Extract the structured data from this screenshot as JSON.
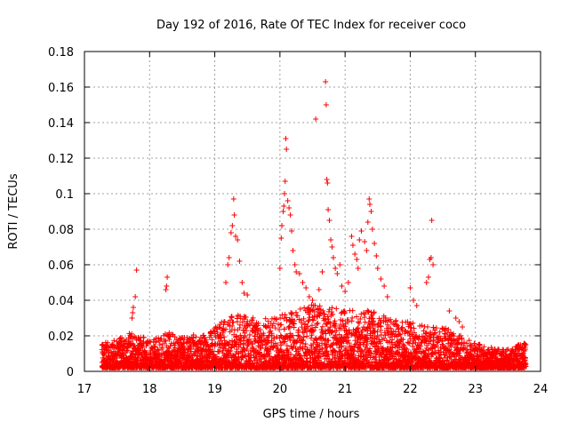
{
  "chart_data": {
    "type": "scatter",
    "title": "Day 192 of 2016, Rate Of TEC Index for receiver coco",
    "xlabel": "GPS time / hours",
    "ylabel": "ROTI / TECUs",
    "xlim": [
      17,
      24
    ],
    "ylim": [
      0,
      0.18
    ],
    "xticks": [
      "17",
      "18",
      "19",
      "20",
      "21",
      "22",
      "23",
      "24"
    ],
    "yticks": [
      "0",
      "0.02",
      "0.04",
      "0.06",
      "0.08",
      "0.1",
      "0.12",
      "0.14",
      "0.16",
      "0.18"
    ],
    "grid": true,
    "marker": "+",
    "series": [
      {
        "name": "ROTI",
        "color": "#ff0000",
        "outliers": [
          [
            17.8,
            0.057
          ],
          [
            17.78,
            0.042
          ],
          [
            17.75,
            0.036
          ],
          [
            17.74,
            0.033
          ],
          [
            17.73,
            0.03
          ],
          [
            18.27,
            0.053
          ],
          [
            18.26,
            0.048
          ],
          [
            18.25,
            0.046
          ],
          [
            19.17,
            0.05
          ],
          [
            19.2,
            0.06
          ],
          [
            19.22,
            0.064
          ],
          [
            19.25,
            0.078
          ],
          [
            19.27,
            0.082
          ],
          [
            19.29,
            0.097
          ],
          [
            19.3,
            0.088
          ],
          [
            19.32,
            0.076
          ],
          [
            19.35,
            0.074
          ],
          [
            19.38,
            0.062
          ],
          [
            19.42,
            0.05
          ],
          [
            19.45,
            0.044
          ],
          [
            19.5,
            0.043
          ],
          [
            20.0,
            0.058
          ],
          [
            20.02,
            0.075
          ],
          [
            20.03,
            0.082
          ],
          [
            20.05,
            0.09
          ],
          [
            20.06,
            0.093
          ],
          [
            20.07,
            0.1
          ],
          [
            20.08,
            0.107
          ],
          [
            20.09,
            0.131
          ],
          [
            20.1,
            0.125
          ],
          [
            20.12,
            0.096
          ],
          [
            20.14,
            0.092
          ],
          [
            20.16,
            0.088
          ],
          [
            20.18,
            0.079
          ],
          [
            20.2,
            0.068
          ],
          [
            20.23,
            0.06
          ],
          [
            20.25,
            0.056
          ],
          [
            20.3,
            0.055
          ],
          [
            20.35,
            0.05
          ],
          [
            20.4,
            0.047
          ],
          [
            20.45,
            0.042
          ],
          [
            20.5,
            0.04
          ],
          [
            20.55,
            0.142
          ],
          [
            20.6,
            0.046
          ],
          [
            20.65,
            0.056
          ],
          [
            20.7,
            0.163
          ],
          [
            20.71,
            0.15
          ],
          [
            20.72,
            0.108
          ],
          [
            20.73,
            0.106
          ],
          [
            20.74,
            0.091
          ],
          [
            20.76,
            0.085
          ],
          [
            20.78,
            0.074
          ],
          [
            20.8,
            0.07
          ],
          [
            20.82,
            0.064
          ],
          [
            20.85,
            0.058
          ],
          [
            20.88,
            0.055
          ],
          [
            20.92,
            0.06
          ],
          [
            20.95,
            0.048
          ],
          [
            21.0,
            0.045
          ],
          [
            21.05,
            0.05
          ],
          [
            21.1,
            0.076
          ],
          [
            21.12,
            0.071
          ],
          [
            21.15,
            0.066
          ],
          [
            21.18,
            0.063
          ],
          [
            21.2,
            0.058
          ],
          [
            21.22,
            0.074
          ],
          [
            21.25,
            0.079
          ],
          [
            21.3,
            0.073
          ],
          [
            21.33,
            0.068
          ],
          [
            21.35,
            0.084
          ],
          [
            21.37,
            0.097
          ],
          [
            21.38,
            0.094
          ],
          [
            21.4,
            0.09
          ],
          [
            21.42,
            0.08
          ],
          [
            21.45,
            0.072
          ],
          [
            21.48,
            0.065
          ],
          [
            21.5,
            0.058
          ],
          [
            21.55,
            0.052
          ],
          [
            21.6,
            0.048
          ],
          [
            21.65,
            0.042
          ],
          [
            22.0,
            0.047
          ],
          [
            22.05,
            0.04
          ],
          [
            22.1,
            0.037
          ],
          [
            22.25,
            0.05
          ],
          [
            22.28,
            0.053
          ],
          [
            22.3,
            0.063
          ],
          [
            22.32,
            0.064
          ],
          [
            22.33,
            0.085
          ],
          [
            22.35,
            0.06
          ],
          [
            22.6,
            0.034
          ],
          [
            22.7,
            0.03
          ],
          [
            22.75,
            0.028
          ],
          [
            22.8,
            0.025
          ]
        ],
        "envelope": [
          [
            17.3,
            0.016
          ],
          [
            17.5,
            0.018
          ],
          [
            17.7,
            0.022
          ],
          [
            18.0,
            0.018
          ],
          [
            18.3,
            0.022
          ],
          [
            18.6,
            0.02
          ],
          [
            18.9,
            0.022
          ],
          [
            19.1,
            0.028
          ],
          [
            19.3,
            0.032
          ],
          [
            19.6,
            0.03
          ],
          [
            19.9,
            0.03
          ],
          [
            20.2,
            0.034
          ],
          [
            20.5,
            0.038
          ],
          [
            20.8,
            0.036
          ],
          [
            21.1,
            0.036
          ],
          [
            21.4,
            0.034
          ],
          [
            21.7,
            0.03
          ],
          [
            22.0,
            0.028
          ],
          [
            22.3,
            0.026
          ],
          [
            22.6,
            0.024
          ],
          [
            22.8,
            0.02
          ],
          [
            23.0,
            0.016
          ],
          [
            23.4,
            0.012
          ],
          [
            23.75,
            0.016
          ]
        ],
        "x_range": [
          17.27,
          23.78
        ]
      }
    ]
  }
}
